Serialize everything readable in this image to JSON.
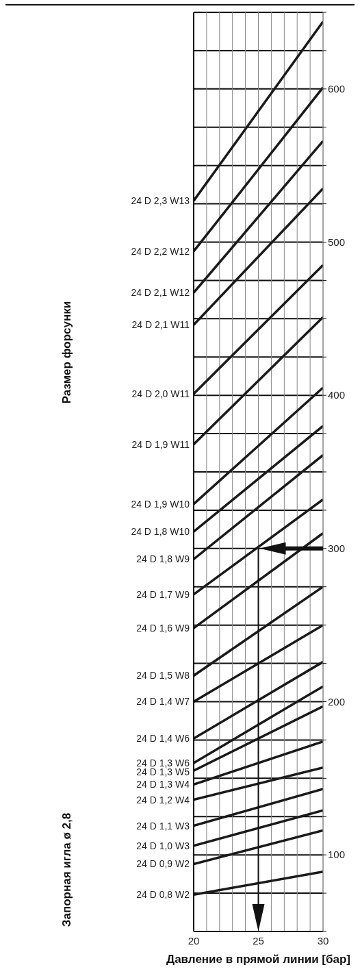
{
  "chart_data": {
    "type": "line",
    "xlabel": "Давление в прямой линии [бар]",
    "annotations": [
      "Размер форсунки",
      "Запорная игла ø 2,8"
    ],
    "xlim": [
      20,
      30
    ],
    "xticks": [
      20,
      {
        "value": 21,
        "label": null
      },
      {
        "value": 22,
        "label": null
      },
      {
        "value": 23,
        "label": null
      },
      {
        "value": 24,
        "label": null
      },
      25,
      {
        "value": 26,
        "label": null
      },
      {
        "value": 27,
        "label": null
      },
      {
        "value": 28,
        "label": null
      },
      {
        "value": 29,
        "label": null
      },
      30
    ],
    "ylim": [
      50,
      650
    ],
    "yticks": [
      {
        "value": 50,
        "label": null
      },
      {
        "value": 75,
        "label": null
      },
      100,
      {
        "value": 125,
        "label": null
      },
      {
        "value": 150,
        "label": null
      },
      {
        "value": 175,
        "label": null
      },
      200,
      {
        "value": 225,
        "label": null
      },
      {
        "value": 250,
        "label": null
      },
      {
        "value": 275,
        "label": null
      },
      300,
      {
        "value": 325,
        "label": null
      },
      {
        "value": 350,
        "label": null
      },
      {
        "value": 375,
        "label": null
      },
      400,
      {
        "value": 425,
        "label": null
      },
      {
        "value": 450,
        "label": null
      },
      {
        "value": 475,
        "label": null
      },
      500,
      {
        "value": 525,
        "label": null
      },
      {
        "value": 550,
        "label": null
      },
      {
        "value": 575,
        "label": null
      },
      600,
      {
        "value": 625,
        "label": null
      },
      {
        "value": 650,
        "label": null
      }
    ],
    "grid": true,
    "marker": "none",
    "line_style": "solid",
    "x": [
      20,
      30
    ],
    "series": [
      {
        "name": "24 D 2,3 W13",
        "color": "#1a1a1a",
        "values": [
          527,
          644
        ]
      },
      {
        "name": "24 D 2,2 W12",
        "color": "#1a1a1a",
        "values": [
          494,
          601
        ]
      },
      {
        "name": "24 D 2,1 W12",
        "color": "#1a1a1a",
        "values": [
          467,
          566
        ]
      },
      {
        "name": "24 D 2,1 W11",
        "color": "#1a1a1a",
        "values": [
          446,
          535
        ]
      },
      {
        "name": "24 D 2,0 W11",
        "color": "#1a1a1a",
        "values": [
          401,
          485
        ]
      },
      {
        "name": "24 D 1,9 W11",
        "color": "#1a1a1a",
        "values": [
          368,
          451
        ]
      },
      {
        "name": "24 D 1,9 W10",
        "color": "#1a1a1a",
        "values": [
          329,
          405
        ]
      },
      {
        "name": "24 D 1,8 W10",
        "color": "#1a1a1a",
        "values": [
          311,
          380
        ]
      },
      {
        "name": "24 D 1,8 W9",
        "color": "#1a1a1a",
        "values": [
          293,
          361
        ]
      },
      {
        "name": "24 D 1,7 W9",
        "color": "#1a1a1a",
        "values": [
          270,
          332
        ]
      },
      {
        "name": "24 D 1,6 W9",
        "color": "#1a1a1a",
        "values": [
          248,
          310
        ]
      },
      {
        "name": "24 D 1,5 W8",
        "color": "#1a1a1a",
        "values": [
          217,
          275
        ]
      },
      {
        "name": "24 D 1,4 W7",
        "color": "#1a1a1a",
        "values": [
          200,
          250
        ]
      },
      {
        "name": "24 D 1,4 W6",
        "color": "#1a1a1a",
        "values": [
          176,
          226
        ]
      },
      {
        "name": "24 D 1,3 W6",
        "color": "#1a1a1a",
        "values": [
          160,
          210
        ]
      },
      {
        "name": "24 D 1,3 W5",
        "color": "#1a1a1a",
        "values": [
          155,
          197
        ]
      },
      {
        "name": "24 D 1,3 W4",
        "color": "#1a1a1a",
        "values": [
          146,
          174
        ]
      },
      {
        "name": "24 D 1,2 W4",
        "color": "#1a1a1a",
        "values": [
          136,
          157
        ]
      },
      {
        "name": "24 D 1,1 W3",
        "color": "#1a1a1a",
        "values": [
          119,
          143
        ]
      },
      {
        "name": "24 D 1,0 W3",
        "color": "#1a1a1a",
        "values": [
          106,
          129
        ]
      },
      {
        "name": "24 D 0,9 W2",
        "color": "#1a1a1a",
        "values": [
          94,
          116
        ]
      },
      {
        "name": "24 D 0,8 W2",
        "color": "#1a1a1a",
        "values": [
          74,
          89
        ]
      }
    ]
  }
}
